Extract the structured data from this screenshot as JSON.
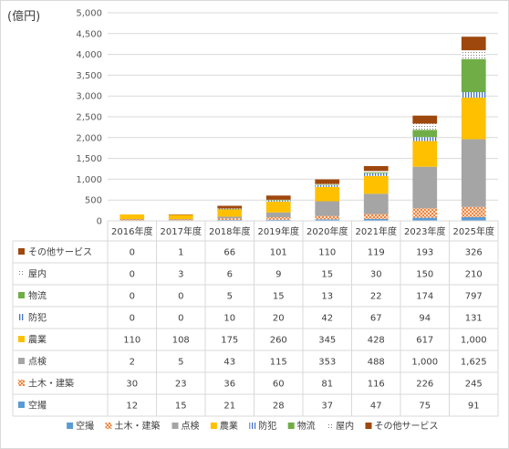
{
  "chart_data": {
    "type": "bar",
    "stacked": true,
    "unit_label": "(億円)",
    "categories": [
      "2016年度",
      "2017年度",
      "2018年度",
      "2019年度",
      "2020年度",
      "2021年度",
      "2023年度",
      "2025年度"
    ],
    "ylim": [
      0,
      5000
    ],
    "yticks": [
      "0",
      "500",
      "1,000",
      "1,500",
      "2,000",
      "2,500",
      "3,000",
      "3,500",
      "4,000",
      "4,500",
      "5,000"
    ],
    "ytick_values": [
      0,
      500,
      1000,
      1500,
      2000,
      2500,
      3000,
      3500,
      4000,
      4500,
      5000
    ],
    "grid": true,
    "legend_position": "bottom",
    "series": [
      {
        "name": "空撮",
        "color": "#5b9bd5",
        "pattern": "solid",
        "values": [
          12,
          15,
          21,
          28,
          37,
          47,
          75,
          91
        ],
        "labels": [
          "12",
          "15",
          "21",
          "28",
          "37",
          "47",
          "75",
          "91"
        ]
      },
      {
        "name": "土木・建築",
        "color": "#ed7d31",
        "pattern": "cross",
        "values": [
          30,
          23,
          36,
          60,
          81,
          116,
          226,
          245
        ],
        "labels": [
          "30",
          "23",
          "36",
          "60",
          "81",
          "116",
          "226",
          "245"
        ]
      },
      {
        "name": "点検",
        "color": "#a5a5a5",
        "pattern": "solid",
        "values": [
          2,
          5,
          43,
          115,
          353,
          488,
          1000,
          1625
        ],
        "labels": [
          "2",
          "5",
          "43",
          "115",
          "353",
          "488",
          "1,000",
          "1,625"
        ]
      },
      {
        "name": "農業",
        "color": "#ffc000",
        "pattern": "solid",
        "values": [
          110,
          108,
          175,
          260,
          345,
          428,
          617,
          1000
        ],
        "labels": [
          "110",
          "108",
          "175",
          "260",
          "345",
          "428",
          "617",
          "1,000"
        ]
      },
      {
        "name": "防犯",
        "color": "#4472c4",
        "pattern": "vlines",
        "values": [
          0,
          0,
          10,
          20,
          42,
          67,
          94,
          131
        ],
        "labels": [
          "0",
          "0",
          "10",
          "20",
          "42",
          "67",
          "94",
          "131"
        ]
      },
      {
        "name": "物流",
        "color": "#70ad47",
        "pattern": "solid",
        "values": [
          0,
          0,
          5,
          15,
          13,
          22,
          174,
          797
        ],
        "labels": [
          "0",
          "0",
          "5",
          "15",
          "13",
          "22",
          "174",
          "797"
        ]
      },
      {
        "name": "屋内",
        "color": "#264478",
        "pattern": "dots",
        "values": [
          0,
          3,
          6,
          9,
          15,
          30,
          150,
          210
        ],
        "labels": [
          "0",
          "3",
          "6",
          "9",
          "15",
          "30",
          "150",
          "210"
        ]
      },
      {
        "name": "その他サービス",
        "color": "#9e480e",
        "pattern": "solid",
        "values": [
          0,
          1,
          66,
          101,
          110,
          119,
          193,
          326
        ],
        "labels": [
          "0",
          "1",
          "66",
          "101",
          "110",
          "119",
          "193",
          "326"
        ]
      }
    ]
  }
}
